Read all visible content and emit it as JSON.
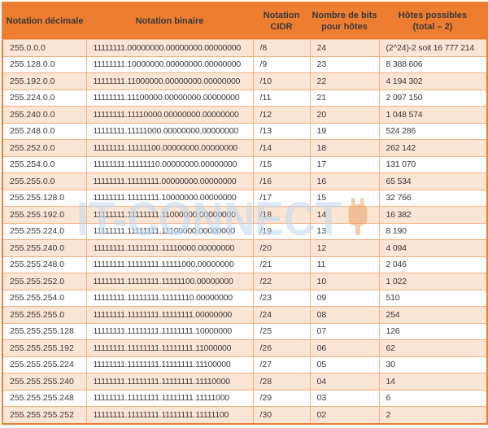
{
  "watermark": {
    "text": "IT-CONNECT",
    "text_color": "#BFD9F0",
    "logo_icon": "plug-icon",
    "logo_color": "#ED9B5C"
  },
  "colors": {
    "header_bg": "#ED7D31",
    "header_text": "#3B3838",
    "row_alt_bg": "#FBE5D5",
    "row_bg": "#FFFFFF",
    "grid_border": "#F4B183",
    "outer_border": "#ED7D31",
    "cell_text": "#3B3838"
  },
  "table": {
    "headers": [
      "Notation décimale",
      "Notation binaire",
      "Notation\nCIDR",
      "Nombre de bits\npour hôtes",
      "Hôtes possibles\n(total – 2)"
    ],
    "rows": [
      {
        "decimal": "255.0.0.0",
        "binary": "11111111.00000000.00000000.00000000",
        "cidr": "/8",
        "bits": "24",
        "hosts": "(2^24)-2 soit 16 777 214"
      },
      {
        "decimal": "255.128.0.0",
        "binary": "11111111.10000000.00000000.00000000",
        "cidr": "/9",
        "bits": "23",
        "hosts": "8 388 606"
      },
      {
        "decimal": "255.192.0.0",
        "binary": "11111111.11000000.00000000.00000000",
        "cidr": "/10",
        "bits": "22",
        "hosts": "4 194 302"
      },
      {
        "decimal": "255.224.0.0",
        "binary": "11111111.11100000.00000000.00000000",
        "cidr": "/11",
        "bits": "21",
        "hosts": "2 097 150"
      },
      {
        "decimal": "255.240.0.0",
        "binary": "11111111.11110000.00000000.00000000",
        "cidr": "/12",
        "bits": "20",
        "hosts": "1 048 574"
      },
      {
        "decimal": "255.248.0.0",
        "binary": "11111111.11111000.00000000.00000000",
        "cidr": "/13",
        "bits": "19",
        "hosts": "524 286"
      },
      {
        "decimal": "255.252.0.0",
        "binary": "11111111.11111100.00000000.00000000",
        "cidr": "/14",
        "bits": "18",
        "hosts": "262 142"
      },
      {
        "decimal": "255.254.0.0",
        "binary": "11111111.11111110.00000000.00000000",
        "cidr": "/15",
        "bits": "17",
        "hosts": "131 070"
      },
      {
        "decimal": "255.255.0.0",
        "binary": "11111111.11111111.00000000.00000000",
        "cidr": "/16",
        "bits": "16",
        "hosts": "65 534"
      },
      {
        "decimal": "255.255.128.0",
        "binary": "11111111.11111111.10000000.00000000",
        "cidr": "/17",
        "bits": "15",
        "hosts": "32 766"
      },
      {
        "decimal": "255.255.192.0",
        "binary": "11111111.11111111.11000000.00000000",
        "cidr": "/18",
        "bits": "14",
        "hosts": "16 382"
      },
      {
        "decimal": "255.255.224.0",
        "binary": "11111111.11111111.11100000.00000000",
        "cidr": "/19",
        "bits": "13",
        "hosts": "8 190"
      },
      {
        "decimal": "255.255.240.0",
        "binary": "11111111.11111111.11110000.00000000",
        "cidr": "/20",
        "bits": "12",
        "hosts": "4 094"
      },
      {
        "decimal": "255.255.248.0",
        "binary": "11111111.11111111.11111000.00000000",
        "cidr": "/21",
        "bits": "11",
        "hosts": "2 046"
      },
      {
        "decimal": "255.255.252.0",
        "binary": "11111111.11111111.11111100.00000000",
        "cidr": "/22",
        "bits": "10",
        "hosts": "1 022"
      },
      {
        "decimal": "255.255.254.0",
        "binary": "11111111.11111111.11111110.00000000",
        "cidr": "/23",
        "bits": "09",
        "hosts": "510"
      },
      {
        "decimal": "255.255.255.0",
        "binary": "11111111.11111111.11111111.00000000",
        "cidr": "/24",
        "bits": "08",
        "hosts": "254"
      },
      {
        "decimal": "255.255.255.128",
        "binary": "11111111.11111111.11111111.10000000",
        "cidr": "/25",
        "bits": "07",
        "hosts": "126"
      },
      {
        "decimal": "255.255.255.192",
        "binary": "11111111.11111111.11111111.11000000",
        "cidr": "/26",
        "bits": "06",
        "hosts": "62"
      },
      {
        "decimal": "255.255.255.224",
        "binary": "11111111.11111111.11111111.11100000",
        "cidr": "/27",
        "bits": "05",
        "hosts": "30"
      },
      {
        "decimal": "255.255.255.240",
        "binary": "11111111.11111111.11111111.11110000",
        "cidr": "/28",
        "bits": "04",
        "hosts": "14"
      },
      {
        "decimal": "255.255.255.248",
        "binary": "11111111.11111111.11111111.11111000",
        "cidr": "/29",
        "bits": "03",
        "hosts": "6"
      },
      {
        "decimal": "255.255.255.252",
        "binary": "11111111.11111111.11111111.11111100",
        "cidr": "/30",
        "bits": "02",
        "hosts": "2"
      }
    ]
  }
}
